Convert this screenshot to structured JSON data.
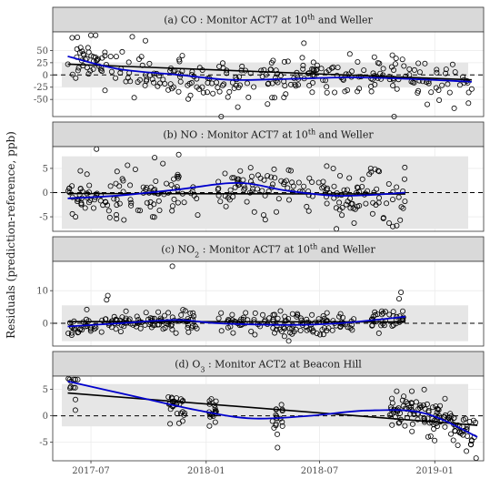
{
  "figure": {
    "ylabel": "Residuals (prediction-reference, ppb)"
  },
  "chart_data": [
    {
      "type": "scatter",
      "title": "(a) CO :  Monitor ACT7 at 10th and Weller",
      "title_parts": {
        "pre": "(a) CO :  Monitor ACT7 at 10",
        "sup": "th",
        "post": " and Weller"
      },
      "ylim": [
        -85,
        88
      ],
      "yticks": [
        -50,
        -25,
        0,
        25,
        50
      ],
      "band": [
        -25,
        25
      ],
      "xlim": [
        "2017-05-01",
        "2019-03-20"
      ],
      "x_range": [
        "2017-05-25",
        "2019-03-01"
      ],
      "gaps": [],
      "seed": 11,
      "n_points": 290,
      "noise_sd": 22,
      "outliers": [
        [
          "2017-06-01",
          76
        ],
        [
          "2017-09-05",
          78
        ],
        [
          "2017-09-26",
          70
        ],
        [
          "2018-01-25",
          -85
        ],
        [
          "2018-06-06",
          65
        ],
        [
          "2018-10-28",
          -85
        ],
        [
          "2018-12-20",
          -60
        ],
        [
          "2019-02-01",
          -68
        ]
      ],
      "trend_linear": [
        [
          "2017-05-25",
          22
        ],
        [
          "2019-03-01",
          -10
        ]
      ],
      "smooth": [
        [
          "2017-05-25",
          38
        ],
        [
          "2017-08-15",
          12
        ],
        [
          "2017-11-20",
          0
        ],
        [
          "2018-02-10",
          -10
        ],
        [
          "2018-05-15",
          -8
        ],
        [
          "2018-08-20",
          -5
        ],
        [
          "2018-11-20",
          -8
        ],
        [
          "2019-03-01",
          -14
        ]
      ],
      "grid": true,
      "legend": "none"
    },
    {
      "type": "scatter",
      "title": "(b) NO :  Monitor ACT7 at 10th and Weller",
      "title_parts": {
        "pre": "(b) NO :  Monitor ACT7 at 10",
        "sup": "th",
        "post": " and Weller"
      },
      "ylim": [
        -8,
        9.5
      ],
      "yticks": [
        -5,
        0,
        5
      ],
      "band": [
        -7.5,
        7.5
      ],
      "xlim": [
        "2017-05-01",
        "2019-03-20"
      ],
      "x_range": [
        "2017-05-25",
        "2018-11-15"
      ],
      "gaps": [
        [
          "2017-12-20",
          "2018-01-15"
        ]
      ],
      "seed": 23,
      "n_points": 260,
      "noise_sd": 2.3,
      "outliers": [
        [
          "2017-07-10",
          9.0
        ],
        [
          "2017-09-10",
          4.8
        ],
        [
          "2018-07-28",
          -7.5
        ],
        [
          "2018-10-26",
          -7.0
        ],
        [
          "2018-10-20",
          -6.3
        ]
      ],
      "trend_linear": [
        [
          "2017-05-25",
          -0.2
        ],
        [
          "2018-11-15",
          -0.3
        ]
      ],
      "smooth": [
        [
          "2017-05-25",
          -1.2
        ],
        [
          "2017-08-15",
          -0.6
        ],
        [
          "2017-11-15",
          0.6
        ],
        [
          "2018-02-20",
          2.0
        ],
        [
          "2018-05-10",
          0.4
        ],
        [
          "2018-07-20",
          -0.6
        ],
        [
          "2018-09-20",
          -0.5
        ],
        [
          "2018-11-15",
          0.0
        ]
      ],
      "grid": true,
      "legend": "none"
    },
    {
      "type": "scatter",
      "title": "(c) NO2 :  Monitor ACT7 at 10th and Weller",
      "title_parts": {
        "pre": "(c) NO",
        "sub": "2",
        "mid": " :  Monitor ACT7 at 10",
        "sup": "th",
        "post": " and Weller"
      },
      "ylim": [
        -7,
        19
      ],
      "yticks": [
        0,
        10
      ],
      "band": [
        -5.5,
        5.5
      ],
      "xlim": [
        "2017-05-01",
        "2019-03-20"
      ],
      "x_range": [
        "2017-05-25",
        "2018-11-15"
      ],
      "gaps": [
        [
          "2017-12-20",
          "2018-01-15"
        ],
        [
          "2018-08-25",
          "2018-09-15"
        ]
      ],
      "seed": 37,
      "n_points": 280,
      "noise_sd": 1.6,
      "outliers": [
        [
          "2017-11-08",
          17.5
        ],
        [
          "2017-07-28",
          8.5
        ],
        [
          "2017-07-26",
          7.2
        ],
        [
          "2018-11-08",
          9.5
        ],
        [
          "2018-11-05",
          7.5
        ]
      ],
      "trend_linear": [
        [
          "2017-05-25",
          0.5
        ],
        [
          "2018-11-15",
          0.4
        ]
      ],
      "smooth": [
        [
          "2017-05-25",
          -1.0
        ],
        [
          "2017-08-15",
          0.0
        ],
        [
          "2017-11-15",
          1.0
        ],
        [
          "2018-01-20",
          0.0
        ],
        [
          "2018-05-10",
          -0.5
        ],
        [
          "2018-08-01",
          0.0
        ],
        [
          "2018-11-15",
          2.0
        ]
      ],
      "grid": true,
      "legend": "none"
    },
    {
      "type": "scatter",
      "title": "(d) O3 :  Monitor ACT2 at Beacon Hill",
      "title_parts": {
        "pre": "(d) O",
        "sub": "3",
        "post": " :  Monitor ACT2 at Beacon Hill"
      },
      "ylim": [
        -8.5,
        7.5
      ],
      "yticks": [
        -5,
        0,
        5
      ],
      "band": [
        -2,
        6
      ],
      "xlim": [
        "2017-05-01",
        "2019-03-20"
      ],
      "x_range": [
        "2017-05-25",
        "2019-03-10"
      ],
      "clusters": [
        [
          "2017-05-25",
          "2017-06-10"
        ],
        [
          "2017-11-01",
          "2017-11-28"
        ],
        [
          "2018-01-05",
          "2018-01-20"
        ],
        [
          "2018-04-15",
          "2018-05-05"
        ],
        [
          "2018-10-20",
          "2019-03-10"
        ]
      ],
      "gaps": [],
      "seed": 53,
      "n_points": 200,
      "noise_sd": 1.8,
      "outliers": [
        [
          "2017-05-26",
          7.0
        ],
        [
          "2018-04-25",
          -6.0
        ],
        [
          "2019-03-08",
          -8.0
        ]
      ],
      "trend_linear": [
        [
          "2017-05-25",
          4.3
        ],
        [
          "2019-03-10",
          -1.8
        ]
      ],
      "smooth": [
        [
          "2017-05-25",
          6.5
        ],
        [
          "2017-09-15",
          3.5
        ],
        [
          "2017-12-20",
          1.0
        ],
        [
          "2018-03-15",
          -0.5
        ],
        [
          "2018-06-15",
          0.0
        ],
        [
          "2018-09-15",
          1.0
        ],
        [
          "2018-12-15",
          0.5
        ],
        [
          "2019-03-10",
          -4.0
        ]
      ],
      "grid": true,
      "legend": "none"
    }
  ],
  "x_axis": {
    "ticks": [
      {
        "date": "2017-07-01",
        "label": "2017-07"
      },
      {
        "date": "2018-01-01",
        "label": "2018-01"
      },
      {
        "date": "2018-07-01",
        "label": "2018-07"
      },
      {
        "date": "2019-01-01",
        "label": "2019-01"
      }
    ]
  },
  "colors": {
    "panel_bg": "#ffffff",
    "strip_bg": "#d9d9d9",
    "band": "#e6e6e6",
    "grid": "#ebebeb",
    "points": "#000000",
    "linear": "#000000",
    "smooth": "#0000cc",
    "zero_line": "#000000"
  }
}
